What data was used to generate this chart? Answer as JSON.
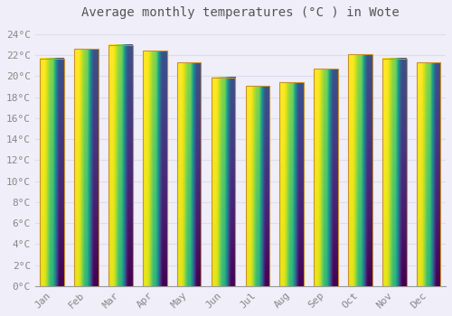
{
  "title": "Average monthly temperatures (°C ) in Wote",
  "months": [
    "Jan",
    "Feb",
    "Mar",
    "Apr",
    "May",
    "Jun",
    "Jul",
    "Aug",
    "Sep",
    "Oct",
    "Nov",
    "Dec"
  ],
  "values": [
    21.7,
    22.6,
    23.0,
    22.4,
    21.3,
    19.9,
    19.1,
    19.4,
    20.7,
    22.1,
    21.7,
    21.3
  ],
  "bar_color_top": "#FFD040",
  "bar_color_bottom": "#F5A800",
  "bar_edge_color": "#C8922A",
  "background_color": "#F0EEF8",
  "plot_bg_color": "#F0EEF8",
  "grid_color": "#DDDDEE",
  "ytick_labels": [
    "0°C",
    "2°C",
    "4°C",
    "6°C",
    "8°C",
    "10°C",
    "12°C",
    "14°C",
    "16°C",
    "18°C",
    "20°C",
    "22°C",
    "24°C"
  ],
  "ytick_values": [
    0,
    2,
    4,
    6,
    8,
    10,
    12,
    14,
    16,
    18,
    20,
    22,
    24
  ],
  "ylim": [
    0,
    25.0
  ],
  "title_fontsize": 10,
  "tick_fontsize": 8,
  "font_family": "monospace",
  "bar_width": 0.7
}
